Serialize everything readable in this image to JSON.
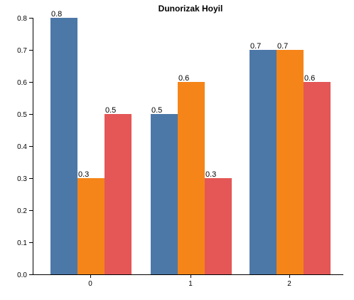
{
  "chart_data": {
    "type": "bar",
    "title": "Dunorizak Hoyil",
    "categories": [
      "0",
      "1",
      "2"
    ],
    "series": [
      {
        "values": [
          0.8,
          0.5,
          0.7
        ],
        "color": "#4c78a8"
      },
      {
        "values": [
          0.3,
          0.6,
          0.7
        ],
        "color": "#f58518"
      },
      {
        "values": [
          0.5,
          0.3,
          0.6
        ],
        "color": "#e45756"
      }
    ],
    "value_labels": [
      [
        "0.8",
        "0.5",
        "0.7"
      ],
      [
        "0.3",
        "0.6",
        "0.7"
      ],
      [
        "0.5",
        "0.3",
        "0.6"
      ]
    ],
    "y_ticks": [
      "0.0",
      "0.1",
      "0.2",
      "0.3",
      "0.4",
      "0.5",
      "0.6",
      "0.7",
      "0.8"
    ],
    "ylim": [
      0,
      0.8
    ],
    "xlabel": "",
    "ylabel": "",
    "grid": false,
    "legend": "none"
  }
}
